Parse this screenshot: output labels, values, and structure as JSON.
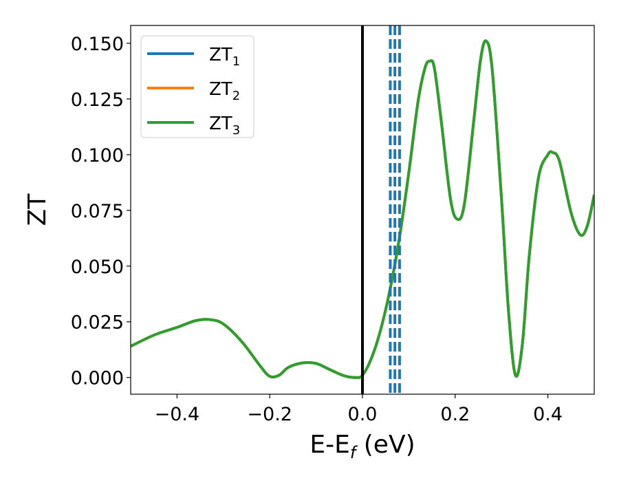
{
  "chart_data": {
    "type": "line",
    "title": "",
    "xlabel": "E-E",
    "xlabel_sub": "f",
    "xlabel_unit": " (eV)",
    "ylabel": "ZT",
    "xlim": [
      -0.5,
      0.5
    ],
    "ylim": [
      -0.0075,
      0.158
    ],
    "x_ticks": [
      -0.4,
      -0.2,
      0.0,
      0.2,
      0.4
    ],
    "x_tick_labels": [
      "−0.4",
      "−0.2",
      "0.0",
      "0.2",
      "0.4"
    ],
    "y_ticks": [
      0.0,
      0.025,
      0.05,
      0.075,
      0.1,
      0.125,
      0.15
    ],
    "y_tick_labels": [
      "0.000",
      "0.025",
      "0.050",
      "0.075",
      "0.100",
      "0.125",
      "0.150"
    ],
    "grid": false,
    "legend_position": "top-left",
    "series": [
      {
        "name": "ZT",
        "sub": "1",
        "color": "#1f77b4"
      },
      {
        "name": "ZT",
        "sub": "2",
        "color": "#ff7f0e"
      },
      {
        "name": "ZT",
        "sub": "3",
        "color": "#2ca02c"
      }
    ],
    "curve": {
      "x": [
        -0.5,
        -0.45,
        -0.4,
        -0.36,
        -0.33,
        -0.3,
        -0.26,
        -0.22,
        -0.2,
        -0.18,
        -0.16,
        -0.13,
        -0.1,
        -0.07,
        -0.04,
        -0.015,
        0.0,
        0.02,
        0.04,
        0.06,
        0.08,
        0.1,
        0.12,
        0.135,
        0.145,
        0.155,
        0.17,
        0.19,
        0.205,
        0.22,
        0.24,
        0.255,
        0.267,
        0.28,
        0.3,
        0.315,
        0.33,
        0.345,
        0.36,
        0.38,
        0.4,
        0.41,
        0.425,
        0.45,
        0.47,
        0.485,
        0.5
      ],
      "y": [
        0.014,
        0.019,
        0.0225,
        0.0255,
        0.026,
        0.024,
        0.016,
        0.005,
        0.0005,
        0.001,
        0.0045,
        0.0065,
        0.0063,
        0.0035,
        0.0008,
        0.0,
        0.001,
        0.009,
        0.022,
        0.04,
        0.063,
        0.092,
        0.124,
        0.139,
        0.142,
        0.139,
        0.115,
        0.08,
        0.071,
        0.078,
        0.115,
        0.143,
        0.151,
        0.138,
        0.08,
        0.03,
        0.001,
        0.015,
        0.055,
        0.09,
        0.1,
        0.101,
        0.097,
        0.074,
        0.064,
        0.068,
        0.082
      ]
    },
    "markers": {
      "vertical_line_x": 0.0,
      "vertical_line_color": "#000000",
      "dashed_lines_x": [
        0.06,
        0.07,
        0.08
      ],
      "dashed_lines_color": "#1f77b4"
    }
  }
}
